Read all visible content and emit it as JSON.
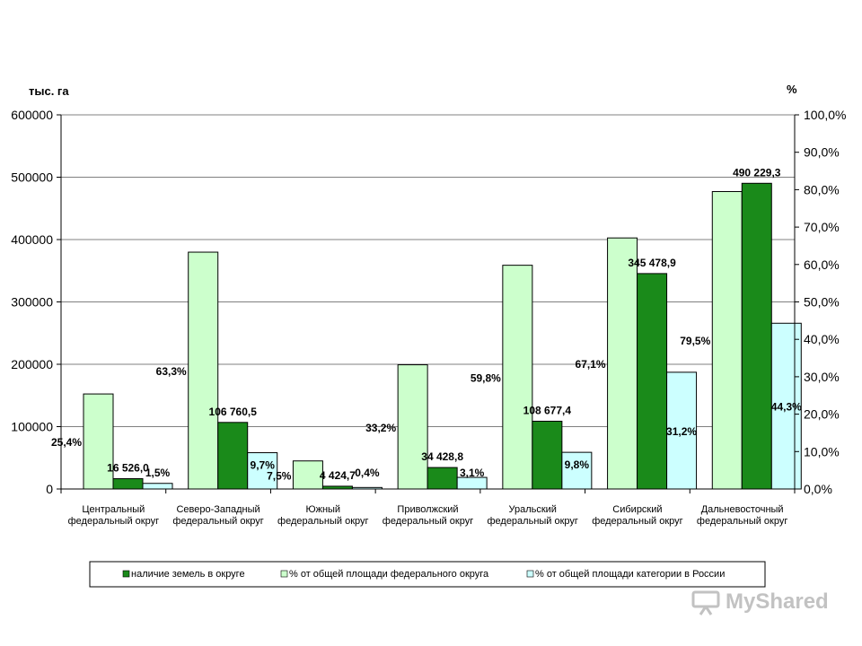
{
  "chart_data": {
    "type": "bar",
    "left_axis_unit": "тыс. га",
    "right_axis_unit": "%",
    "left_ylim": [
      0,
      600000
    ],
    "left_ticks": [
      "0",
      "100000",
      "200000",
      "300000",
      "400000",
      "500000",
      "600000"
    ],
    "right_ylim": [
      0,
      100
    ],
    "right_ticks": [
      "0,0%",
      "10,0%",
      "20,0%",
      "30,0%",
      "40,0%",
      "50,0%",
      "60,0%",
      "70,0%",
      "80,0%",
      "90,0%",
      "100,0%"
    ],
    "categories": [
      [
        "Центральный",
        "федеральный округ"
      ],
      [
        "Северо-Западный",
        "федеральный округ"
      ],
      [
        "Южный",
        "федеральный округ"
      ],
      [
        "Приволжский",
        "федеральный округ"
      ],
      [
        "Уральский",
        "федеральный округ"
      ],
      [
        "Сибирский",
        "федеральный округ"
      ],
      [
        "Дальневосточный",
        "федеральный округ"
      ]
    ],
    "series": [
      {
        "name": "% от общей площади федерального округа",
        "axis": "right",
        "color": "#ccffcc",
        "values": [
          25.4,
          63.3,
          7.5,
          33.2,
          59.8,
          67.1,
          79.5
        ],
        "labels": [
          "25,4%",
          "63,3%",
          "7,5%",
          "33,2%",
          "59,8%",
          "67,1%",
          "79,5%"
        ]
      },
      {
        "name": "наличие земель в округе",
        "axis": "left",
        "color": "#1a8a1a",
        "values": [
          16526.0,
          106760.5,
          4424.7,
          34428.8,
          108677.4,
          345478.9,
          490229.3
        ],
        "labels": [
          "16 526,0",
          "106 760,5",
          "4 424,7",
          "34 428,8",
          "108 677,4",
          "345 478,9",
          "490 229,3"
        ]
      },
      {
        "name": "% от общей площади категории в России",
        "axis": "right",
        "color": "#ccffff",
        "values": [
          1.5,
          9.7,
          0.4,
          3.1,
          9.8,
          31.2,
          44.3
        ],
        "labels": [
          "1,5%",
          "9,7%",
          "0,4%",
          "3,1%",
          "9,8%",
          "31,2%",
          "44,3%"
        ]
      }
    ],
    "legend": [
      "наличие земель в округе",
      "% от общей площади федерального округа",
      "% от общей площади категории в России"
    ],
    "grid": true,
    "legend_position": "bottom"
  },
  "watermark": {
    "text": "MyShared"
  }
}
